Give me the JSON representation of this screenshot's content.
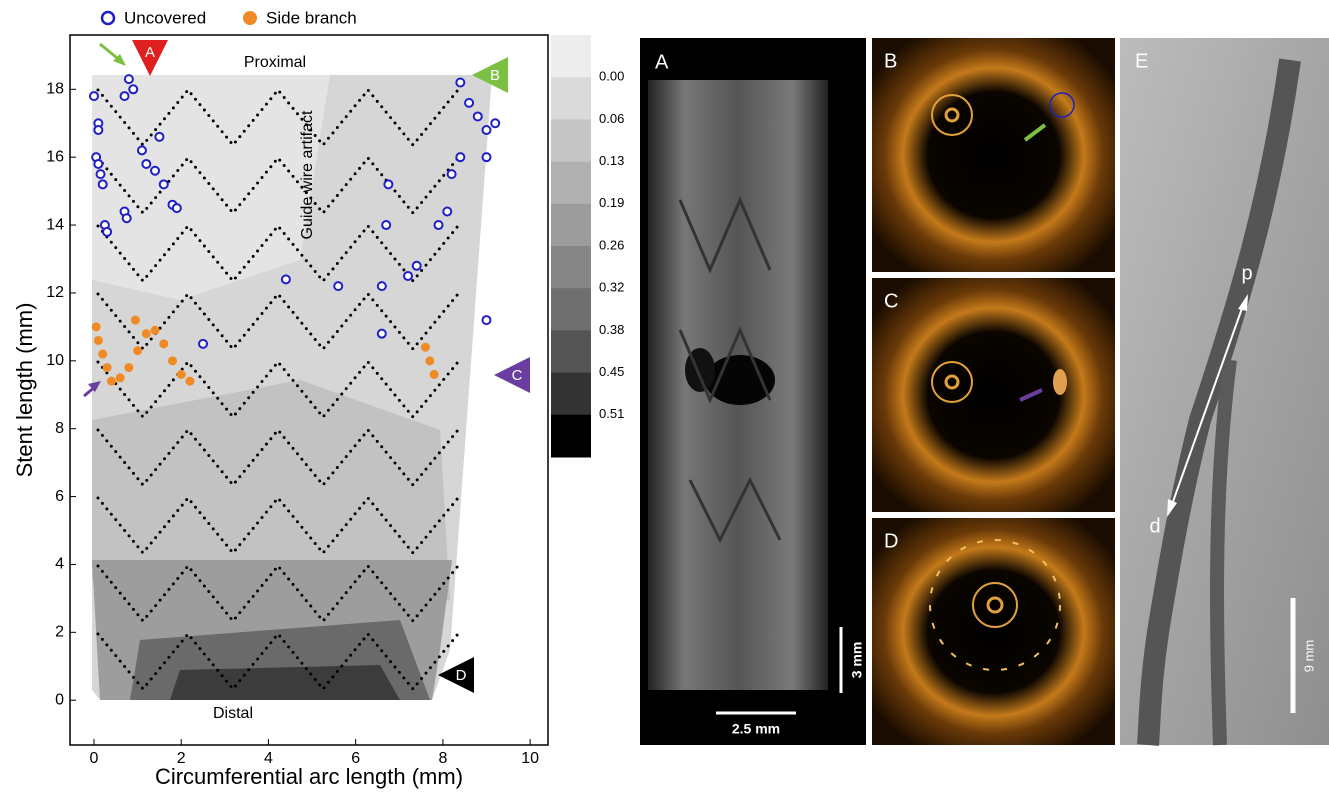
{
  "chart_data": {
    "type": "scatter",
    "x_label": "Circumferential arc length (mm)",
    "y_label": "Stent length (mm)",
    "xlim": [
      -0.55,
      10.41
    ],
    "ylim": [
      -1.32,
      19.6
    ],
    "xticks": [
      0,
      2,
      4,
      6,
      8,
      10
    ],
    "yticks": [
      0,
      2,
      4,
      6,
      8,
      10,
      12,
      14,
      16,
      18
    ],
    "series": [
      {
        "name": "Uncovered",
        "color": "#1f1fc8",
        "marker": "ring",
        "x": [
          0,
          0.1,
          0.1,
          0.05,
          0.1,
          0.15,
          0.2,
          0.25,
          0.3,
          0.8,
          0.9,
          1.1,
          1.2,
          1.4,
          1.6,
          1.8,
          1.9,
          0.7,
          0.75,
          0.7,
          1.5,
          4.4,
          5.6,
          6.6,
          6.7,
          6.75,
          7.2,
          7.4,
          7.9,
          8.1,
          8.2,
          8.4,
          8.4,
          8.6,
          8.8,
          9.0,
          9.2,
          9.0,
          2.5,
          6.6,
          9.0
        ],
        "values": [
          17.8,
          17,
          16.8,
          16,
          15.8,
          15.5,
          15.2,
          14,
          13.8,
          18.3,
          18,
          16.2,
          15.8,
          15.6,
          15.2,
          14.6,
          14.5,
          14.4,
          14.2,
          17.8,
          16.6,
          12.4,
          12.2,
          12.2,
          14,
          15.2,
          12.5,
          12.8,
          14,
          14.4,
          15.5,
          16,
          18.2,
          17.6,
          17.2,
          16.8,
          17,
          16,
          10.5,
          10.8,
          11.2
        ]
      },
      {
        "name": "Side branch",
        "color": "#f08a24",
        "marker": "dot",
        "x": [
          0.05,
          0.1,
          0.2,
          0.3,
          0.4,
          0.6,
          0.8,
          1.0,
          1.2,
          1.4,
          1.6,
          1.8,
          2.0,
          2.2,
          7.7,
          7.8,
          7.6,
          0.95
        ],
        "values": [
          11,
          10.6,
          10.2,
          9.8,
          9.4,
          9.5,
          9.8,
          10.3,
          10.8,
          10.9,
          10.5,
          10,
          9.6,
          9.4,
          10.0,
          9.6,
          10.4,
          11.2
        ]
      }
    ],
    "annotations": [
      "Proximal",
      "Distal",
      "Guide wire artifact"
    ],
    "markers": [
      {
        "label": "A",
        "color": "#e02020"
      },
      {
        "label": "B",
        "color": "#7cc043"
      },
      {
        "label": "C",
        "color": "#6a3ea0"
      },
      {
        "label": "D",
        "color": "#000000"
      }
    ],
    "colorbar": {
      "colors": [
        "#ededed",
        "#dadada",
        "#c6c6c6",
        "#b1b1b1",
        "#9c9c9c",
        "#868686",
        "#6f6f6f",
        "#555555",
        "#333333",
        "#000000"
      ],
      "ticks": [
        {
          "value": 0,
          "label": "0.00"
        },
        {
          "value": 0.06,
          "label": "0.06"
        },
        {
          "value": 0.13,
          "label": "0.13"
        },
        {
          "value": 0.19,
          "label": "0.19"
        },
        {
          "value": 0.26,
          "label": "0.26"
        },
        {
          "value": 0.32,
          "label": "0.32"
        },
        {
          "value": 0.38,
          "label": "0.38"
        },
        {
          "value": 0.45,
          "label": "0.45"
        },
        {
          "value": 0.51,
          "label": "0.51"
        }
      ]
    }
  },
  "panels": {
    "A": {
      "label": "A",
      "scale_v": "3 mm",
      "scale_h": "2.5 mm"
    },
    "B": {
      "label": "B"
    },
    "C": {
      "label": "C"
    },
    "D": {
      "label": "D"
    },
    "E": {
      "label": "E",
      "p": "p",
      "d": "d",
      "scale": "9 mm"
    }
  }
}
